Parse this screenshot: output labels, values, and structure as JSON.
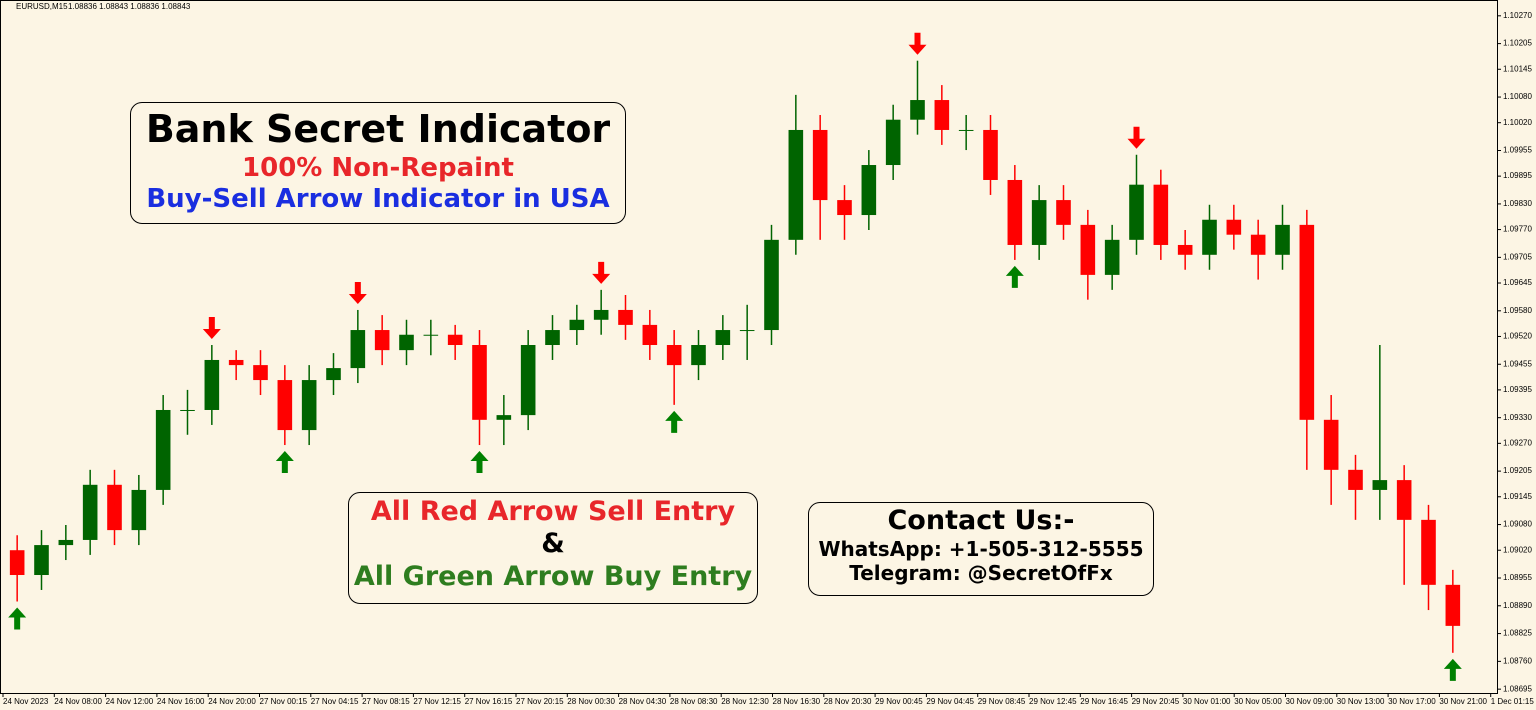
{
  "chart_data": {
    "type": "candlestick",
    "symbol": "EURUSD,M15",
    "quote": "1.08836 1.08843 1.08836 1.08843",
    "bull_color": "#006400",
    "bear_color": "#ff0000",
    "sell_color": "#ff0000",
    "buy_color": "#008000",
    "ylim": [
      1.08686,
      1.10307
    ],
    "yticks": [
      {
        "value": 1.1027,
        "label": "1.10270"
      },
      {
        "value": 1.10205,
        "label": "1.10205"
      },
      {
        "value": 1.10145,
        "label": "1.10145"
      },
      {
        "value": 1.1008,
        "label": "1.10080"
      },
      {
        "value": 1.1002,
        "label": "1.10020"
      },
      {
        "value": 1.09955,
        "label": "1.09955"
      },
      {
        "value": 1.09895,
        "label": "1.09895"
      },
      {
        "value": 1.0983,
        "label": "1.09830"
      },
      {
        "value": 1.0977,
        "label": "1.09770"
      },
      {
        "value": 1.09705,
        "label": "1.09705"
      },
      {
        "value": 1.09645,
        "label": "1.09645"
      },
      {
        "value": 1.0958,
        "label": "1.09580"
      },
      {
        "value": 1.0952,
        "label": "1.09520"
      },
      {
        "value": 1.09455,
        "label": "1.09455"
      },
      {
        "value": 1.09395,
        "label": "1.09395"
      },
      {
        "value": 1.0933,
        "label": "1.09330"
      },
      {
        "value": 1.0927,
        "label": "1.09270"
      },
      {
        "value": 1.09205,
        "label": "1.09205"
      },
      {
        "value": 1.09145,
        "label": "1.09145"
      },
      {
        "value": 1.0908,
        "label": "1.09080"
      },
      {
        "value": 1.0902,
        "label": "1.09020"
      },
      {
        "value": 1.08955,
        "label": "1.08955"
      },
      {
        "value": 1.0889,
        "label": "1.08890"
      },
      {
        "value": 1.08825,
        "label": "1.08825"
      },
      {
        "value": 1.0876,
        "label": "1.08760"
      },
      {
        "value": 1.08695,
        "label": "1.08695"
      }
    ],
    "x_labels": [
      "24 Nov 2023",
      "24 Nov 08:00",
      "24 Nov 12:00",
      "24 Nov 16:00",
      "24 Nov 20:00",
      "27 Nov 00:15",
      "27 Nov 04:15",
      "27 Nov 08:15",
      "27 Nov 12:15",
      "27 Nov 16:15",
      "27 Nov 20:15",
      "28 Nov 00:30",
      "28 Nov 04:30",
      "28 Nov 08:30",
      "28 Nov 12:30",
      "28 Nov 16:30",
      "28 Nov 20:30",
      "29 Nov 00:45",
      "29 Nov 04:45",
      "29 Nov 08:45",
      "29 Nov 12:45",
      "29 Nov 16:45",
      "29 Nov 20:45",
      "30 Nov 01:00",
      "30 Nov 05:00",
      "30 Nov 09:00",
      "30 Nov 13:00",
      "30 Nov 17:00",
      "30 Nov 21:00",
      "1 Dec 01:15"
    ],
    "open": [
      1.0902,
      1.08962,
      1.09032,
      1.09044,
      1.09173,
      1.09067,
      1.09161,
      1.09348,
      1.09348,
      1.09465,
      1.09453,
      1.09418,
      1.09301,
      1.09418,
      1.09446,
      1.09535,
      1.09488,
      1.09524,
      1.09524,
      1.095,
      1.09325,
      1.09336,
      1.095,
      1.09535,
      1.09559,
      1.09582,
      1.09547,
      1.095,
      1.09453,
      1.095,
      1.09535,
      1.09535,
      1.09746,
      1.10003,
      1.09839,
      1.09804,
      1.09921,
      1.10027,
      1.10073,
      1.10003,
      1.10003,
      1.09886,
      1.09734,
      1.09839,
      1.09781,
      1.09664,
      1.09746,
      1.09875,
      1.09734,
      1.09711,
      1.09793,
      1.09758,
      1.09711,
      1.09781,
      1.09325,
      1.09208,
      1.09161,
      1.09184,
      1.09091,
      1.08939
    ],
    "high": [
      1.09055,
      1.09067,
      1.09079,
      1.09208,
      1.09208,
      1.09196,
      1.09383,
      1.09395,
      1.095,
      1.09488,
      1.09488,
      1.09453,
      1.09453,
      1.09481,
      1.09582,
      1.0957,
      1.09559,
      1.09559,
      1.09547,
      1.09535,
      1.09383,
      1.09535,
      1.0957,
      1.09594,
      1.09629,
      1.09617,
      1.09582,
      1.09535,
      1.09535,
      1.0957,
      1.09594,
      1.09781,
      1.10085,
      1.10038,
      1.09874,
      1.09956,
      1.10062,
      1.10165,
      1.10108,
      1.10038,
      1.10038,
      1.09921,
      1.09874,
      1.09874,
      1.09816,
      1.09781,
      1.09945,
      1.0991,
      1.09769,
      1.09828,
      1.09828,
      1.09793,
      1.09828,
      1.09816,
      1.09383,
      1.09243,
      1.095,
      1.09219,
      1.09126,
      1.08974
    ],
    "low": [
      1.089,
      1.08927,
      1.08997,
      1.09009,
      1.09032,
      1.09032,
      1.09126,
      1.0929,
      1.09313,
      1.09418,
      1.09383,
      1.09266,
      1.09266,
      1.09383,
      1.09411,
      1.09453,
      1.09453,
      1.09476,
      1.09465,
      1.09266,
      1.09266,
      1.09301,
      1.09465,
      1.095,
      1.09524,
      1.09512,
      1.09465,
      1.0936,
      1.09418,
      1.09465,
      1.09465,
      1.095,
      1.09711,
      1.09746,
      1.09746,
      1.09769,
      1.09886,
      1.09992,
      1.09968,
      1.09956,
      1.09851,
      1.09699,
      1.09699,
      1.09746,
      1.09606,
      1.09629,
      1.09711,
      1.09699,
      1.09676,
      1.09676,
      1.09723,
      1.09653,
      1.09676,
      1.09208,
      1.09126,
      1.09091,
      1.09091,
      1.08939,
      1.0888,
      1.0878
    ],
    "close": [
      1.08962,
      1.09032,
      1.09044,
      1.09173,
      1.09067,
      1.09161,
      1.09348,
      1.09348,
      1.09465,
      1.09453,
      1.09418,
      1.09301,
      1.09418,
      1.09446,
      1.09535,
      1.09488,
      1.09524,
      1.09524,
      1.095,
      1.09325,
      1.09336,
      1.095,
      1.09535,
      1.09559,
      1.09582,
      1.09547,
      1.095,
      1.09453,
      1.095,
      1.09535,
      1.09535,
      1.09746,
      1.10003,
      1.09839,
      1.09804,
      1.09921,
      1.10027,
      1.10073,
      1.10003,
      1.10003,
      1.09886,
      1.09734,
      1.09839,
      1.09781,
      1.09664,
      1.09746,
      1.09875,
      1.09734,
      1.09711,
      1.09793,
      1.09758,
      1.09711,
      1.09781,
      1.09325,
      1.09208,
      1.09161,
      1.09184,
      1.09091,
      1.08939,
      1.08843
    ],
    "sell_arrows": [
      null,
      null,
      null,
      null,
      null,
      null,
      null,
      null,
      1.095,
      null,
      null,
      null,
      null,
      null,
      1.09582,
      null,
      null,
      null,
      null,
      null,
      null,
      null,
      null,
      null,
      1.09629,
      null,
      null,
      null,
      null,
      null,
      null,
      null,
      null,
      null,
      null,
      null,
      null,
      1.10165,
      null,
      null,
      null,
      null,
      null,
      null,
      null,
      null,
      1.09945,
      null,
      null,
      null,
      null,
      null,
      null,
      null,
      null,
      null,
      null,
      null,
      null,
      null
    ],
    "buy_arrows": [
      1.089,
      null,
      null,
      null,
      null,
      null,
      null,
      null,
      null,
      null,
      null,
      1.09266,
      null,
      null,
      null,
      null,
      null,
      null,
      null,
      1.09266,
      null,
      null,
      null,
      null,
      null,
      null,
      null,
      1.0936,
      null,
      null,
      null,
      null,
      null,
      null,
      null,
      null,
      null,
      null,
      null,
      null,
      null,
      1.09699,
      null,
      null,
      null,
      null,
      null,
      null,
      null,
      null,
      null,
      null,
      null,
      null,
      null,
      null,
      null,
      null,
      null,
      1.0878
    ]
  },
  "annotations": {
    "title_box": {
      "title": "Bank Secret Indicator",
      "line1": "100% Non-Repaint",
      "line2": "Buy-Sell Arrow Indicator in USA"
    },
    "entry_box": {
      "sell": "All Red Arrow Sell Entry",
      "and": "&",
      "buy": "All Green Arrow Buy Entry"
    },
    "contact_box": {
      "title": "Contact Us:-",
      "whatsapp": "WhatsApp: +1-505-312-5555",
      "telegram": "Telegram: @SecretOfFx"
    }
  }
}
